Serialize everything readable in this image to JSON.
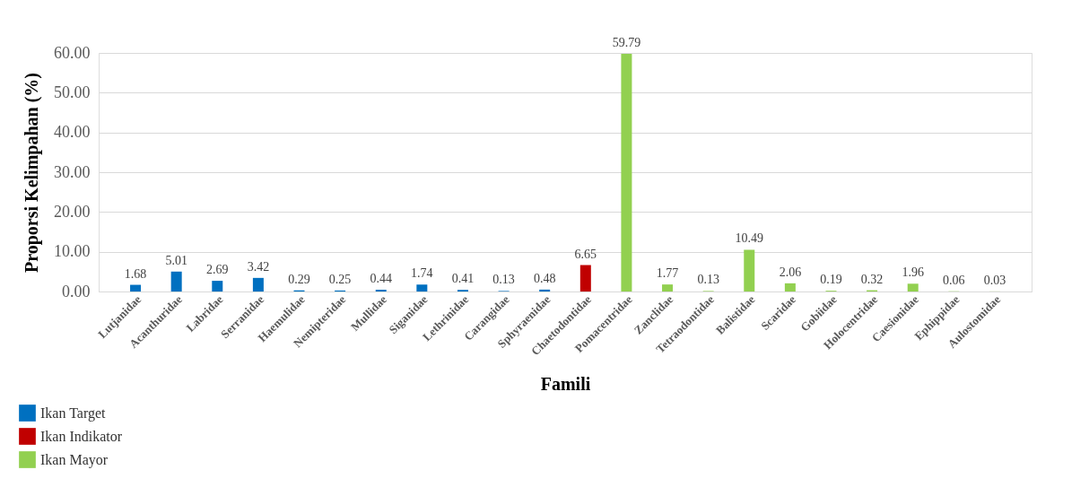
{
  "chart_data": {
    "type": "bar",
    "xlabel": "Famili",
    "ylabel": "Proporsi Kelimpahan (%)",
    "categories": [
      "Lutjanidae",
      "Acanthuridae",
      "Labridae",
      "Serranidae",
      "Haemulidae",
      "Nemipteridae",
      "Mullidae",
      "Siganidae",
      "Lethrinidae",
      "Carangidae",
      "Sphyraenidae",
      "Chaetodontidae",
      "Pomacentridae",
      "Zanclidae",
      "Tetraodontidae",
      "Balistidae",
      "Scaridae",
      "Gobiidae",
      "Holocentridae",
      "Caesionidae",
      "Ephippidae",
      "Aulostomidae"
    ],
    "series": [
      {
        "name": "Ikan Target",
        "color": "#0070c0",
        "values": [
          1.68,
          5.01,
          2.69,
          3.42,
          0.29,
          0.25,
          0.44,
          1.74,
          0.41,
          0.13,
          0.48,
          null,
          null,
          null,
          null,
          null,
          null,
          null,
          null,
          null,
          null,
          null
        ]
      },
      {
        "name": "Ikan Indikator",
        "color": "#c00000",
        "values": [
          null,
          null,
          null,
          null,
          null,
          null,
          null,
          null,
          null,
          null,
          null,
          6.65,
          null,
          null,
          null,
          null,
          null,
          null,
          null,
          null,
          null,
          null
        ]
      },
      {
        "name": "Ikan Mayor",
        "color": "#92d050",
        "values": [
          null,
          null,
          null,
          null,
          null,
          null,
          null,
          null,
          null,
          null,
          null,
          null,
          59.79,
          1.77,
          0.13,
          10.49,
          2.06,
          0.19,
          0.32,
          1.96,
          0.06,
          0.03
        ]
      }
    ],
    "ylim": [
      0,
      60
    ],
    "yticks": [
      {
        "value": 0,
        "label": "0.00"
      },
      {
        "value": 10,
        "label": "10.00"
      },
      {
        "value": 20,
        "label": "20.00"
      },
      {
        "value": 30,
        "label": "30.00"
      },
      {
        "value": 40,
        "label": "40.00"
      },
      {
        "value": 50,
        "label": "50.00"
      },
      {
        "value": 60,
        "label": "60.00"
      }
    ],
    "grid": "y",
    "legend": "bottom left",
    "data_labels": true
  }
}
